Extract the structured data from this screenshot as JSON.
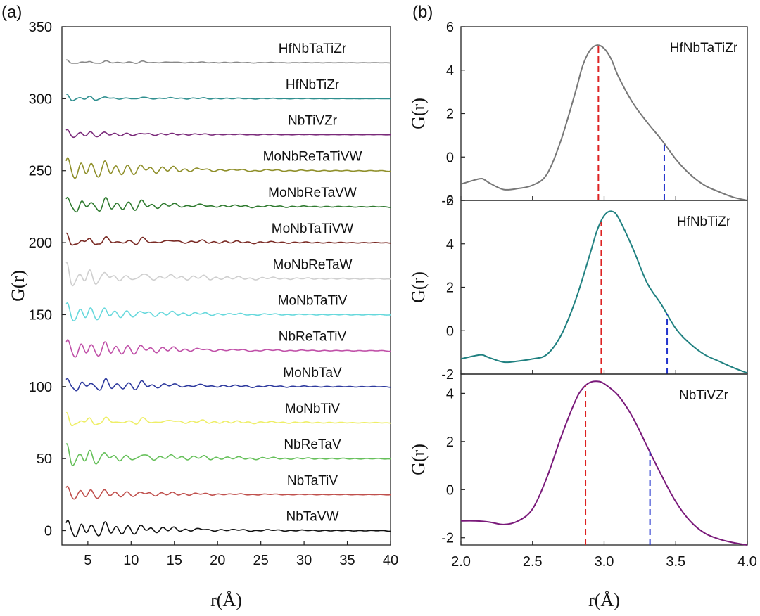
{
  "chart_data": [
    {
      "panel": "(a)",
      "type": "line",
      "xlabel": "r(Å)",
      "ylabel": "G(r)",
      "xlim": [
        2,
        40
      ],
      "ylim": [
        -10,
        350
      ],
      "xticks": [
        5,
        10,
        15,
        20,
        25,
        30,
        35,
        40
      ],
      "yticks": [
        0,
        50,
        100,
        150,
        200,
        250,
        300,
        350
      ],
      "series": [
        {
          "name": "NbTaVW",
          "offset": 0,
          "amplitude": 8,
          "color": "#111111"
        },
        {
          "name": "NbTaTiV",
          "offset": 25,
          "amplitude": 5,
          "color": "#c0504d"
        },
        {
          "name": "NbReTaV",
          "offset": 50,
          "amplitude": 9,
          "color": "#66c05a"
        },
        {
          "name": "MoNbTiV",
          "offset": 75,
          "amplitude": 8,
          "color": "#eeee66"
        },
        {
          "name": "MoNbTaV",
          "offset": 100,
          "amplitude": 8,
          "color": "#2e3a9e"
        },
        {
          "name": "NbReTaTiV",
          "offset": 125,
          "amplitude": 8,
          "color": "#c050a8"
        },
        {
          "name": "MoNbTaTiV",
          "offset": 150,
          "amplitude": 7,
          "color": "#66d8dc"
        },
        {
          "name": "MoNbReTaW",
          "offset": 175,
          "amplitude": 10,
          "color": "#cfcfcf"
        },
        {
          "name": "MoNbTaTiVW",
          "offset": 200,
          "amplitude": 8,
          "color": "#7a2a24"
        },
        {
          "name": "MoNbReTaVW",
          "offset": 225,
          "amplitude": 9,
          "color": "#2f7a2f"
        },
        {
          "name": "MoNbReTaTiVW",
          "offset": 250,
          "amplitude": 9,
          "color": "#8f8f2a"
        },
        {
          "name": "NbTiVZr",
          "offset": 275,
          "amplitude": 3,
          "color": "#7a2a7a"
        },
        {
          "name": "HfNbTiZr",
          "offset": 300,
          "amplitude": 3,
          "color": "#2f8f8f"
        },
        {
          "name": "HfNbTaTiZr",
          "offset": 325,
          "amplitude": 2.5,
          "color": "#888888"
        }
      ]
    },
    {
      "panel": "(b)",
      "type": "line",
      "name": "HfNbTaTiZr",
      "color": "#777777",
      "xlim": [
        2.0,
        4.0
      ],
      "ylim": [
        -2,
        6
      ],
      "yticks": [
        -2,
        0,
        2,
        4,
        6
      ],
      "ylabel": "G(r)",
      "x": [
        2.0,
        2.1,
        2.15,
        2.2,
        2.3,
        2.4,
        2.5,
        2.6,
        2.7,
        2.8,
        2.85,
        2.9,
        2.95,
        3.0,
        3.05,
        3.1,
        3.2,
        3.3,
        3.4,
        3.5,
        3.6,
        3.7,
        3.8,
        3.9,
        4.0
      ],
      "y": [
        -1.25,
        -1.05,
        -1.0,
        -1.2,
        -1.5,
        -1.45,
        -1.3,
        -0.8,
        0.8,
        3.0,
        4.2,
        4.9,
        5.15,
        5.0,
        4.5,
        3.7,
        2.5,
        1.6,
        0.8,
        -0.1,
        -0.8,
        -1.3,
        -1.6,
        -1.85,
        -2.0
      ],
      "markers": [
        {
          "x": 2.96,
          "color": "#dd2222"
        },
        {
          "x": 3.42,
          "color": "#2233cc"
        }
      ]
    },
    {
      "panel": "(b)",
      "type": "line",
      "name": "HfNbTiZr",
      "color": "#1f8080",
      "xlim": [
        2.0,
        4.0
      ],
      "ylim": [
        -2,
        6
      ],
      "yticks": [
        -2,
        0,
        2,
        4,
        6
      ],
      "ylabel": "G(r)",
      "x": [
        2.0,
        2.1,
        2.15,
        2.2,
        2.3,
        2.4,
        2.5,
        2.6,
        2.7,
        2.8,
        2.9,
        2.95,
        3.0,
        3.05,
        3.1,
        3.2,
        3.3,
        3.4,
        3.5,
        3.6,
        3.7,
        3.8,
        3.9,
        4.0
      ],
      "y": [
        -1.3,
        -1.15,
        -1.12,
        -1.25,
        -1.45,
        -1.4,
        -1.3,
        -1.1,
        -0.2,
        1.4,
        3.5,
        4.6,
        5.3,
        5.5,
        5.2,
        3.8,
        2.2,
        1.2,
        0.1,
        -0.6,
        -1.1,
        -1.4,
        -1.7,
        -1.95
      ],
      "markers": [
        {
          "x": 2.98,
          "color": "#dd2222"
        },
        {
          "x": 3.44,
          "color": "#2233cc"
        }
      ]
    },
    {
      "panel": "(b)",
      "type": "line",
      "name": "NbTiVZr",
      "color": "#7a1a7a",
      "xlim": [
        2.0,
        4.0
      ],
      "ylim": [
        -2.3,
        4.8
      ],
      "yticks": [
        -2,
        0,
        2,
        4
      ],
      "ylabel": "G(r)",
      "xlabel": "r(Å)",
      "xticks": [
        2.0,
        2.5,
        3.0,
        3.5,
        4.0
      ],
      "x": [
        2.0,
        2.1,
        2.2,
        2.3,
        2.4,
        2.5,
        2.6,
        2.7,
        2.8,
        2.85,
        2.9,
        2.95,
        3.0,
        3.1,
        3.2,
        3.3,
        3.4,
        3.5,
        3.6,
        3.7,
        3.8,
        3.9,
        4.0
      ],
      "y": [
        -1.3,
        -1.3,
        -1.35,
        -1.45,
        -1.3,
        -0.8,
        0.5,
        2.2,
        3.7,
        4.2,
        4.45,
        4.5,
        4.4,
        3.9,
        3.0,
        1.8,
        0.6,
        -0.5,
        -1.3,
        -1.8,
        -2.05,
        -2.2,
        -2.3
      ],
      "markers": [
        {
          "x": 2.87,
          "color": "#dd2222"
        },
        {
          "x": 3.32,
          "color": "#2233cc"
        }
      ]
    }
  ]
}
